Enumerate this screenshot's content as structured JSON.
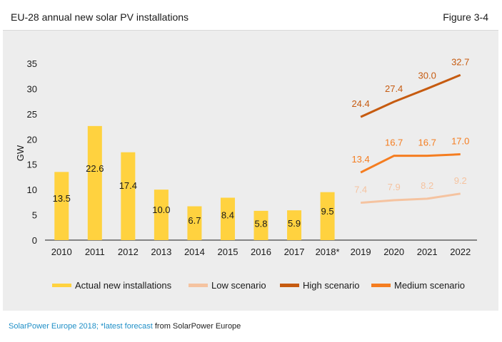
{
  "header": {
    "title": "EU-28 annual new solar PV installations",
    "figure_label": "Figure 3-4"
  },
  "source": {
    "part1": "SolarPower Europe 2018; ",
    "part2": "*latest forecast",
    "part3": " from SolarPower Europe"
  },
  "colors": {
    "bar": "#ffd23f",
    "low": "#f5c3a0",
    "high": "#c65b10",
    "medium": "#f57d20",
    "background": "#ededed"
  },
  "chart_data": {
    "type": "bar",
    "title": "EU-28 annual new solar PV installations",
    "ylabel": "GW",
    "ylim": [
      0,
      35
    ],
    "yticks": [
      0,
      5,
      10,
      15,
      20,
      25,
      30,
      35
    ],
    "grid": false,
    "legend_position": "bottom",
    "categories": [
      "2010",
      "2011",
      "2012",
      "2013",
      "2014",
      "2015",
      "2016",
      "2017",
      "2018*",
      "2019",
      "2020",
      "2021",
      "2022"
    ],
    "bars": {
      "name": "Actual new installations",
      "x": [
        "2010",
        "2011",
        "2012",
        "2013",
        "2014",
        "2015",
        "2016",
        "2017",
        "2018*"
      ],
      "values": [
        13.5,
        22.6,
        17.4,
        10.0,
        6.7,
        8.4,
        5.8,
        5.9,
        9.5
      ],
      "labels": [
        "13.5",
        "22.6",
        "17.4",
        "10.0",
        "6.7",
        "8.4",
        "5.8",
        "5.9",
        "9.5"
      ]
    },
    "series": [
      {
        "name": "Low scenario",
        "key": "low",
        "x": [
          "2019",
          "2020",
          "2021",
          "2022"
        ],
        "values": [
          7.4,
          7.9,
          8.2,
          9.2
        ],
        "labels": [
          "7.4",
          "7.9",
          "8.2",
          "9.2"
        ]
      },
      {
        "name": "High scenario",
        "key": "high",
        "x": [
          "2019",
          "2020",
          "2021",
          "2022"
        ],
        "values": [
          24.4,
          27.4,
          30.0,
          32.7
        ],
        "labels": [
          "24.4",
          "27.4",
          "30.0",
          "32.7"
        ]
      },
      {
        "name": "Medium scenario",
        "key": "medium",
        "x": [
          "2019",
          "2020",
          "2021",
          "2022"
        ],
        "values": [
          13.4,
          16.7,
          16.7,
          17.0
        ],
        "labels": [
          "13.4",
          "16.7",
          "16.7",
          "17.0"
        ]
      }
    ]
  }
}
